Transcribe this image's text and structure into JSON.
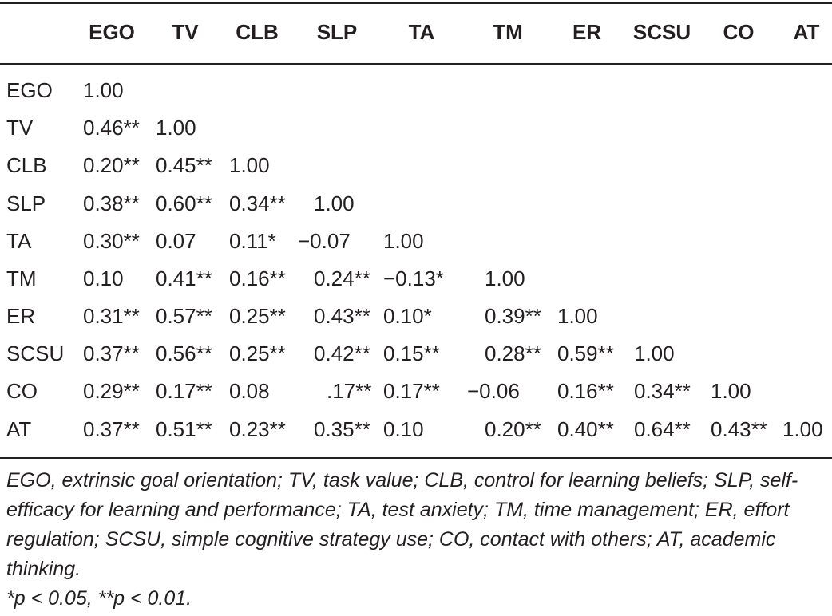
{
  "table": {
    "columns": [
      "EGO",
      "TV",
      "CLB",
      "SLP",
      "TA",
      "TM",
      "ER",
      "SCSU",
      "CO",
      "AT"
    ],
    "rows": [
      {
        "label": "EGO",
        "cells": [
          "1.00"
        ]
      },
      {
        "label": "TV",
        "cells": [
          "0.46**",
          "1.00"
        ]
      },
      {
        "label": "CLB",
        "cells": [
          "0.20**",
          "0.45**",
          "1.00"
        ]
      },
      {
        "label": "SLP",
        "cells": [
          "0.38**",
          "0.60**",
          "0.34**",
          "1.00"
        ]
      },
      {
        "label": "TA",
        "cells": [
          "0.30**",
          "0.07",
          "0.11*",
          "−0.07",
          "1.00"
        ]
      },
      {
        "label": "TM",
        "cells": [
          "0.10",
          "0.41**",
          "0.16**",
          "0.24**",
          "−0.13*",
          "1.00"
        ]
      },
      {
        "label": "ER",
        "cells": [
          "0.31**",
          "0.57**",
          "0.25**",
          "0.43**",
          "0.10*",
          "0.39**",
          "1.00"
        ]
      },
      {
        "label": "SCSU",
        "cells": [
          "0.37**",
          "0.56**",
          "0.25**",
          "0.42**",
          "0.15**",
          "0.28**",
          "0.59**",
          "1.00"
        ]
      },
      {
        "label": "CO",
        "cells": [
          "0.29**",
          "0.17**",
          "0.08",
          ".17**",
          "0.17**",
          "−0.06",
          "0.16**",
          "0.34**",
          "1.00"
        ]
      },
      {
        "label": "AT",
        "cells": [
          "0.37**",
          "0.51**",
          "0.23**",
          "0.35**",
          "0.10",
          "0.20**",
          "0.40**",
          "0.64**",
          "0.43**",
          "1.00"
        ]
      }
    ]
  },
  "notes": {
    "abbreviations": "EGO, extrinsic goal orientation; TV, task value; CLB, control for learning beliefs; SLP, self-efficacy for learning and performance; TA, test anxiety; TM, time management; ER, effort regulation; SCSU, simple cognitive strategy use; CO, contact with others; AT, academic thinking.",
    "significance": "*p < 0.05, **p < 0.01."
  }
}
